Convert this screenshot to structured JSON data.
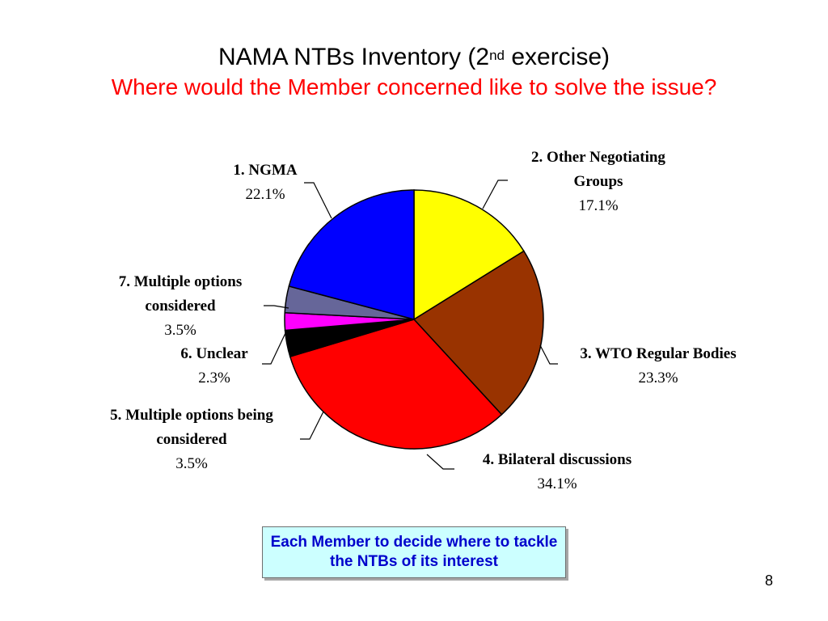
{
  "slide": {
    "title": {
      "prefix": "NAMA NTBs Inventory (2",
      "superscript": "nd",
      "suffix": " exercise)"
    },
    "subtitle": "Where would the Member concerned like to solve the issue?",
    "note": "Each Member to decide where to tackle the NTBs of its interest",
    "page_number": "8"
  },
  "colors": {
    "subtitle": "#ff0000",
    "note_text": "#0000cc",
    "note_background": "#ccffff"
  },
  "chart_data": {
    "type": "pie",
    "slices": [
      {
        "label_lines": [
          "2. Other Negotiating",
          "Groups"
        ],
        "value": 17.1,
        "value_label": "17.1%",
        "color": "#ffff00"
      },
      {
        "label_lines": [
          "3. WTO Regular Bodies"
        ],
        "value": 23.3,
        "value_label": "23.3%",
        "color": "#993300"
      },
      {
        "label_lines": [
          "4. Bilateral discussions"
        ],
        "value": 34.1,
        "value_label": "34.1%",
        "color": "#ff0000"
      },
      {
        "label_lines": [
          "5. Multiple options being",
          "considered"
        ],
        "value": 3.5,
        "value_label": "3.5%",
        "color": "#000000"
      },
      {
        "label_lines": [
          "6. Unclear"
        ],
        "value": 2.3,
        "value_label": "2.3%",
        "color": "#ff00ff"
      },
      {
        "label_lines": [
          "7. Multiple options",
          "considered"
        ],
        "value": 3.5,
        "value_label": "3.5%",
        "color": "#666699"
      },
      {
        "label_lines": [
          "1. NGMA"
        ],
        "value": 22.1,
        "value_label": "22.1%",
        "color": "#0000ff"
      }
    ]
  }
}
